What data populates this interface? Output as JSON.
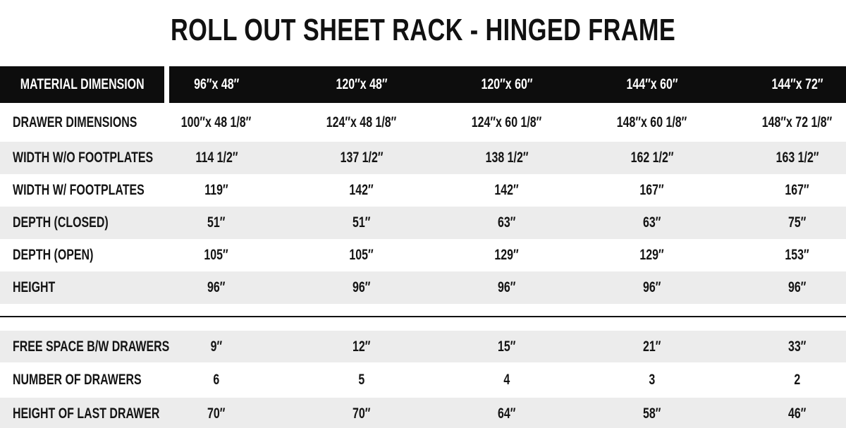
{
  "title": "ROLL OUT SHEET RACK - HINGED FRAME",
  "table": {
    "header_label": "MATERIAL DIMENSION",
    "columns": [
      "96″x 48″",
      "120″x 48″",
      "120″x 60″",
      "144″x 60″",
      "144″x 72″"
    ],
    "rows": [
      {
        "label": "DRAWER DIMENSIONS",
        "values": [
          "100″x 48 1/8″",
          "124″x 48 1/8″",
          "124″x 60 1/8″",
          "148″x 60 1/8″",
          "148″x 72 1/8″"
        ]
      },
      {
        "label": "WIDTH W/O FOOTPLATES",
        "values": [
          "114 1/2″",
          "137 1/2″",
          "138 1/2″",
          "162 1/2″",
          "163 1/2″"
        ]
      },
      {
        "label": "WIDTH W/ FOOTPLATES",
        "values": [
          "119″",
          "142″",
          "142″",
          "167″",
          "167″"
        ]
      },
      {
        "label": "DEPTH (CLOSED)",
        "values": [
          "51″",
          "51″",
          "63″",
          "63″",
          "75″"
        ]
      },
      {
        "label": "DEPTH (OPEN)",
        "values": [
          "105″",
          "105″",
          "129″",
          "129″",
          "153″"
        ]
      },
      {
        "label": "HEIGHT",
        "values": [
          "96″",
          "96″",
          "96″",
          "96″",
          "96″"
        ]
      }
    ],
    "rows2": [
      {
        "label": "FREE SPACE B/W DRAWERS",
        "values": [
          "9″",
          "12″",
          "15″",
          "21″",
          "33″"
        ]
      },
      {
        "label": "NUMBER OF DRAWERS",
        "values": [
          "6",
          "5",
          "4",
          "3",
          "2"
        ]
      },
      {
        "label": "HEIGHT OF LAST DRAWER",
        "values": [
          "70″",
          "70″",
          "64″",
          "58″",
          "46″"
        ]
      }
    ],
    "colors": {
      "header_bg": "#0d0d0d",
      "header_text": "#ffffff",
      "row_alt_bg": "#ececec",
      "body_text": "#141414",
      "divider": "#111111"
    }
  }
}
